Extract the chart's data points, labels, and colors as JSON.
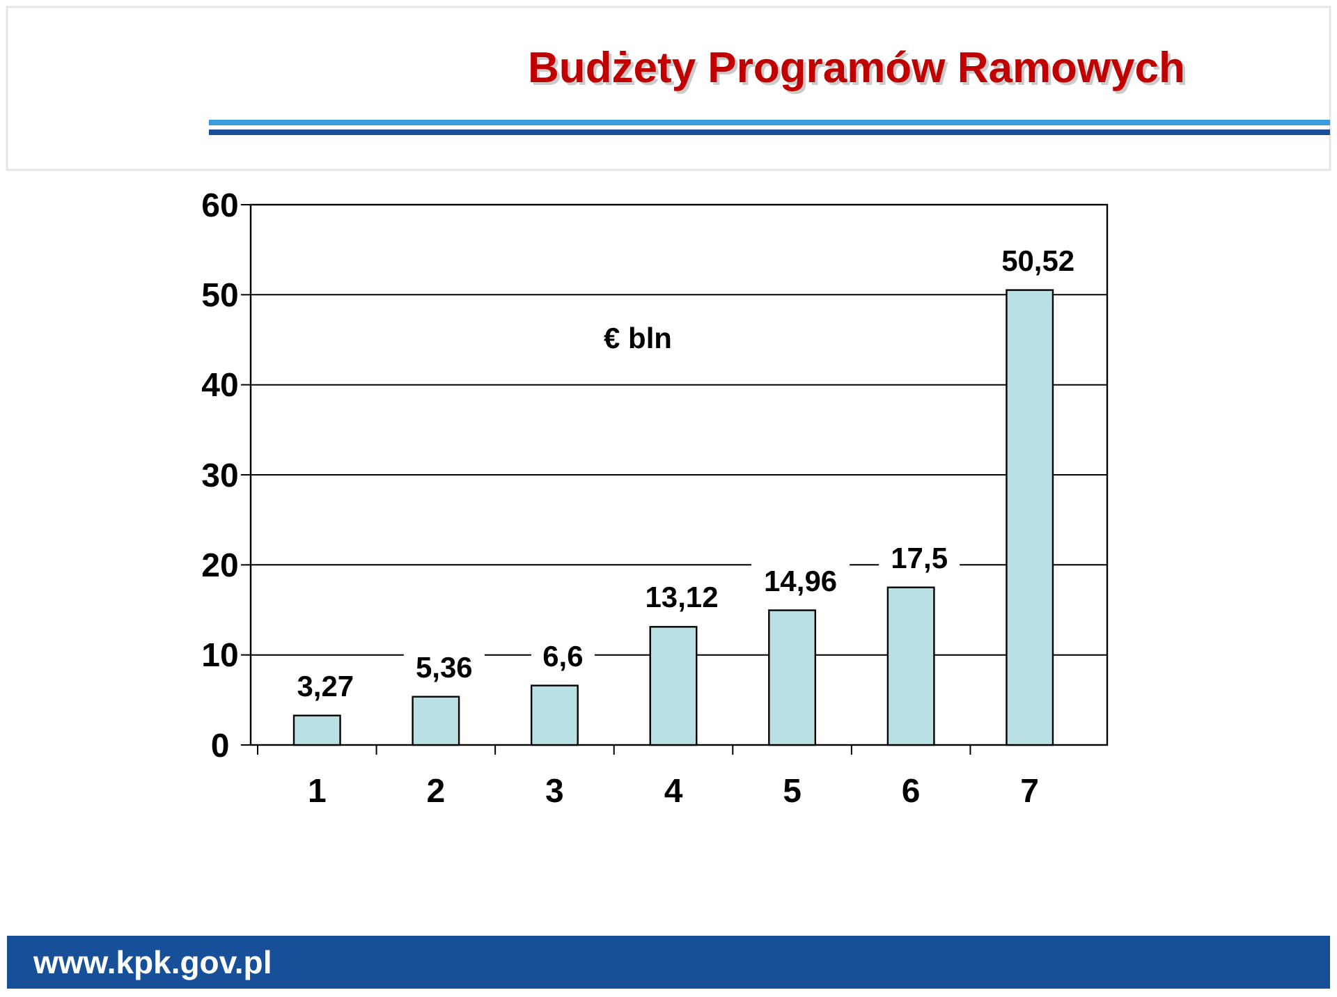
{
  "chart_data": {
    "type": "bar",
    "title": "Budżety Programów Ramowych",
    "categories": [
      "1",
      "2",
      "3",
      "4",
      "5",
      "6",
      "7"
    ],
    "values": [
      3.27,
      5.36,
      6.6,
      13.12,
      14.96,
      17.5,
      50.52
    ],
    "value_labels": [
      "3,27",
      "5,36",
      "6,6",
      "13,12",
      "14,96",
      "17,5",
      "50,52"
    ],
    "color": "#b9e0e3",
    "ylim": [
      0,
      60
    ],
    "yticks": [
      0,
      10,
      20,
      30,
      40,
      50,
      60
    ],
    "grid": "y",
    "annotations": [
      "€ bln",
      "www.kpk.gov.pl"
    ]
  }
}
